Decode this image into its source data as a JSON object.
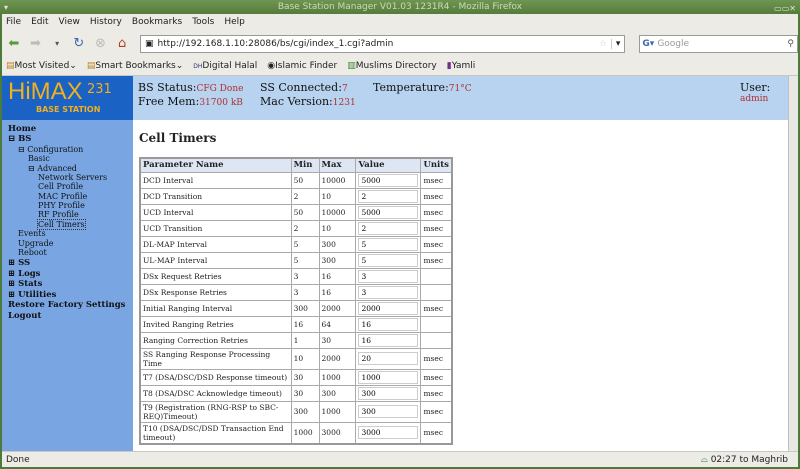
{
  "window": {
    "title": "Base Station Manager V01.03 1231R4 - Mozilla Firefox"
  },
  "menu": [
    "File",
    "Edit",
    "View",
    "History",
    "Bookmarks",
    "Tools",
    "Help"
  ],
  "nav": {
    "url": "http://192.168.1.10:28086/bs/cgi/index_1.cgi?admin",
    "search_placeholder": "Google"
  },
  "bookmarks": [
    "Most Visited",
    "Smart Bookmarks",
    "Digital Halal",
    "Islamic Finder",
    "Muslims Directory",
    "Yamli"
  ],
  "logo": {
    "text": "HiMAX",
    "model": "231",
    "subtitle": "BASE STATION"
  },
  "header": {
    "bs_status_label": "BS Status:",
    "bs_status": "CFG Done",
    "free_mem_label": "Free Mem:",
    "free_mem": "31700 kB",
    "ss_connected_label": "SS Connected:",
    "ss_connected": "7",
    "mac_version_label": "Mac Version:",
    "mac_version": "1231",
    "temperature_label": "Temperature:",
    "temperature": "71°C",
    "user_label": "User:",
    "user": "admin"
  },
  "sidebar": {
    "home": "Home",
    "bs": "BS",
    "configuration": "Configuration",
    "basic": "Basic",
    "advanced": "Advanced",
    "network_servers": "Network Servers",
    "cell_profile": "Cell Profile",
    "mac_profile": "MAC Profile",
    "phy_profile": "PHY Profile",
    "rf_profile": "RF Profile",
    "cell_timers": "Cell Timers",
    "events": "Events",
    "upgrade": "Upgrade",
    "reboot": "Reboot",
    "ss": "SS",
    "logs": "Logs",
    "stats": "Stats",
    "utilities": "Utilities",
    "restore": "Restore Factory Settings",
    "logout": "Logout"
  },
  "main": {
    "title": "Cell Timers",
    "columns": [
      "Parameter Name",
      "Min",
      "Max",
      "Value",
      "Units"
    ],
    "rows": [
      [
        "DCD Interval",
        "50",
        "10000",
        "5000",
        "msec"
      ],
      [
        "DCD Transition",
        "2",
        "10",
        "2",
        "msec"
      ],
      [
        "UCD Interval",
        "50",
        "10000",
        "5000",
        "msec"
      ],
      [
        "UCD Transition",
        "2",
        "10",
        "2",
        "msec"
      ],
      [
        "DL-MAP Interval",
        "5",
        "300",
        "5",
        "msec"
      ],
      [
        "UL-MAP Interval",
        "5",
        "300",
        "5",
        "msec"
      ],
      [
        "DSx Request Retries",
        "3",
        "16",
        "3",
        ""
      ],
      [
        "DSx Response Retries",
        "3",
        "16",
        "3",
        ""
      ],
      [
        "Initial Ranging Interval",
        "300",
        "2000",
        "2000",
        "msec"
      ],
      [
        "Invited Ranging Retries",
        "16",
        "64",
        "16",
        ""
      ],
      [
        "Ranging Correction Retries",
        "1",
        "30",
        "16",
        ""
      ],
      [
        "SS Ranging Response Processing Time",
        "10",
        "2000",
        "20",
        "msec"
      ],
      [
        "T7 (DSA/DSC/DSD Response timeout)",
        "30",
        "1000",
        "1000",
        "msec"
      ],
      [
        "T8 (DSA/DSC Acknowledge timeout)",
        "30",
        "300",
        "300",
        "msec"
      ],
      [
        "T9 (Registration (RNG-RSP to SBC-REQ)Timeout)",
        "300",
        "1000",
        "300",
        "msec"
      ],
      [
        "T10 (DSA/DSC/DSD Transaction End timeout)",
        "1000",
        "3000",
        "3000",
        "msec"
      ]
    ]
  },
  "status": {
    "left": "Done",
    "right": "02:27 to Maghrib"
  }
}
